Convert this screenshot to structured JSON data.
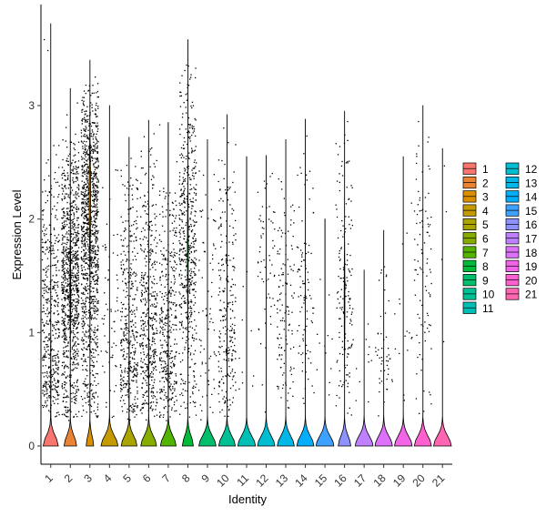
{
  "chart_data": {
    "type": "violin",
    "title": "",
    "xlabel": "Identity",
    "ylabel": "Expression Level",
    "ylim": [
      -0.16,
      3.8
    ],
    "yticks": [
      0,
      1,
      2,
      3
    ],
    "grid": false,
    "legend_position": "right",
    "legend_columns": 2,
    "categories": [
      "1",
      "2",
      "3",
      "4",
      "5",
      "6",
      "7",
      "8",
      "9",
      "10",
      "11",
      "12",
      "13",
      "14",
      "15",
      "16",
      "17",
      "18",
      "19",
      "20",
      "21"
    ],
    "colors": [
      "#F8766D",
      "#EB8335",
      "#DA8F00",
      "#C49A00",
      "#A9A400",
      "#86AC00",
      "#53B400",
      "#00BA38",
      "#00BE6C",
      "#00C094",
      "#00C0B5",
      "#00BDD2",
      "#00B7E8",
      "#00AEFA",
      "#3DA1FF",
      "#8F91FF",
      "#BE80FF",
      "#DE71F9",
      "#F265E7",
      "#FE61CF",
      "#FF66B2"
    ],
    "series": [
      {
        "name": "1",
        "max": 3.72,
        "points": 420,
        "frac_zero": 0.85,
        "dist_min": 0.3,
        "dist_mode": 0.55,
        "dist_max": 2.8
      },
      {
        "name": "2",
        "max": 3.15,
        "points": 900,
        "frac_zero": 0.7,
        "dist_min": 0.2,
        "dist_mode": 1.4,
        "dist_max": 2.8
      },
      {
        "name": "3",
        "max": 3.4,
        "points": 1100,
        "frac_zero": 0.42,
        "dist_min": 0.3,
        "dist_mode": 2.2,
        "dist_max": 3.3
      },
      {
        "name": "4",
        "max": 3.0,
        "points": 60,
        "frac_zero": 0.95,
        "dist_min": 0.2,
        "dist_mode": 0.8,
        "dist_max": 2.7
      },
      {
        "name": "5",
        "max": 2.72,
        "points": 380,
        "frac_zero": 0.88,
        "dist_min": 0.2,
        "dist_mode": 0.6,
        "dist_max": 2.6
      },
      {
        "name": "6",
        "max": 2.87,
        "points": 420,
        "frac_zero": 0.88,
        "dist_min": 0.2,
        "dist_mode": 0.7,
        "dist_max": 2.8
      },
      {
        "name": "7",
        "max": 2.85,
        "points": 360,
        "frac_zero": 0.88,
        "dist_min": 0.2,
        "dist_mode": 0.6,
        "dist_max": 2.6
      },
      {
        "name": "8",
        "max": 3.58,
        "points": 520,
        "frac_zero": 0.62,
        "dist_min": 0.3,
        "dist_mode": 1.7,
        "dist_max": 3.5
      },
      {
        "name": "9",
        "max": 2.7,
        "points": 70,
        "frac_zero": 0.96,
        "dist_min": 0.2,
        "dist_mode": 0.9,
        "dist_max": 2.6
      },
      {
        "name": "10",
        "max": 2.92,
        "points": 240,
        "frac_zero": 0.93,
        "dist_min": 0.2,
        "dist_mode": 0.8,
        "dist_max": 2.9
      },
      {
        "name": "11",
        "max": 2.55,
        "points": 10,
        "frac_zero": 0.99,
        "dist_min": 0.3,
        "dist_mode": 0.5,
        "dist_max": 2.5
      },
      {
        "name": "12",
        "max": 2.56,
        "points": 60,
        "frac_zero": 0.97,
        "dist_min": 0.8,
        "dist_mode": 1.7,
        "dist_max": 2.5
      },
      {
        "name": "13",
        "max": 2.7,
        "points": 120,
        "frac_zero": 0.95,
        "dist_min": 0.3,
        "dist_mode": 1.0,
        "dist_max": 2.6
      },
      {
        "name": "14",
        "max": 2.88,
        "points": 90,
        "frac_zero": 0.96,
        "dist_min": 0.3,
        "dist_mode": 1.2,
        "dist_max": 2.8
      },
      {
        "name": "15",
        "max": 2.0,
        "points": 12,
        "frac_zero": 0.99,
        "dist_min": 0.3,
        "dist_mode": 0.8,
        "dist_max": 1.9
      },
      {
        "name": "16",
        "max": 2.95,
        "points": 150,
        "frac_zero": 0.7,
        "dist_min": 0.2,
        "dist_mode": 1.3,
        "dist_max": 2.9
      },
      {
        "name": "17",
        "max": 1.55,
        "points": 10,
        "frac_zero": 0.99,
        "dist_min": 0.3,
        "dist_mode": 0.7,
        "dist_max": 1.5
      },
      {
        "name": "18",
        "max": 1.9,
        "points": 45,
        "frac_zero": 0.97,
        "dist_min": 0.3,
        "dist_mode": 0.7,
        "dist_max": 1.8
      },
      {
        "name": "19",
        "max": 2.55,
        "points": 15,
        "frac_zero": 0.99,
        "dist_min": 0.2,
        "dist_mode": 0.5,
        "dist_max": 2.5
      },
      {
        "name": "20",
        "max": 3.0,
        "points": 90,
        "frac_zero": 0.96,
        "dist_min": 0.3,
        "dist_mode": 1.8,
        "dist_max": 2.9
      },
      {
        "name": "21",
        "max": 2.62,
        "points": 4,
        "frac_zero": 0.99,
        "dist_min": 0.3,
        "dist_mode": 1.4,
        "dist_max": 2.6
      }
    ]
  }
}
